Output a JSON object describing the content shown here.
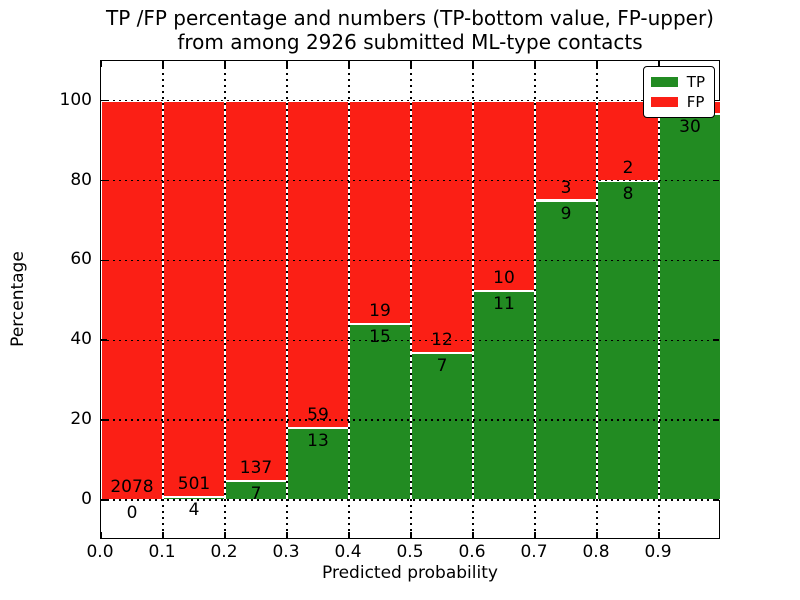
{
  "figure": {
    "title_line1": "TP /FP percentage and numbers (TP-bottom value, FP-upper)",
    "title_line2": "from among 2926 submitted ML-type contacts",
    "xlabel": "Predicted probability",
    "ylabel": "Percentage",
    "total_submitted_contacts": "2926"
  },
  "legend": {
    "position": "upper right",
    "items": [
      {
        "label": "TP",
        "color": "#228b22"
      },
      {
        "label": "FP",
        "color": "#fb1f15"
      }
    ]
  },
  "colors": {
    "tp_green": "#228b22",
    "fp_red": "#fb1f15",
    "bar_edge": "#ffffff",
    "grid": "#000000",
    "background": "#ffffff"
  },
  "chart_data": {
    "type": "bar",
    "subtype": "stacked-percentage-histogram",
    "title": "TP /FP percentage and numbers (TP-bottom value, FP-upper) from among 2926 submitted ML-type contacts",
    "xlabel": "Predicted probability",
    "ylabel": "Percentage",
    "xlim": [
      0.0,
      1.0
    ],
    "ylim": [
      -10,
      110
    ],
    "grid": "dotted black, horizontal and vertical, drawn over bars",
    "bar_edge_color": "white",
    "bin_width": 0.1,
    "categories": [
      "0.0-0.1",
      "0.1-0.2",
      "0.2-0.3",
      "0.3-0.4",
      "0.4-0.5",
      "0.5-0.6",
      "0.6-0.7",
      "0.7-0.8",
      "0.8-0.9",
      "0.9-1.0"
    ],
    "x_tick_labels": [
      "0.0",
      "0.1",
      "0.2",
      "0.3",
      "0.4",
      "0.5",
      "0.6",
      "0.7",
      "0.8",
      "0.9"
    ],
    "y_tick_labels": [
      "0",
      "20",
      "40",
      "60",
      "80",
      "100"
    ],
    "y_tick_values": [
      0,
      20,
      40,
      60,
      80,
      100
    ],
    "series": [
      {
        "name": "TP",
        "role": "bottom segment (green)",
        "counts": [
          0,
          4,
          7,
          13,
          15,
          7,
          11,
          9,
          8,
          30
        ]
      },
      {
        "name": "FP",
        "role": "top segment (red)",
        "counts": [
          2078,
          501,
          137,
          59,
          19,
          12,
          10,
          3,
          2,
          null
        ]
      }
    ],
    "tp_percent_of_bar": [
      0.0,
      0.79,
      4.86,
      18.06,
      44.12,
      36.84,
      52.38,
      75.0,
      80.0,
      96.77
    ],
    "annotations": {
      "fp_labels": [
        "2078",
        "501",
        "137",
        "59",
        "19",
        "12",
        "10",
        "3",
        "2",
        ""
      ],
      "tp_labels": [
        "0",
        "4",
        "7",
        "13",
        "15",
        "7",
        "11",
        "9",
        "8",
        "30"
      ],
      "note_visible_in_pixels": "FP count of the 0.9-1.0 bar is hidden behind the legend box"
    }
  }
}
